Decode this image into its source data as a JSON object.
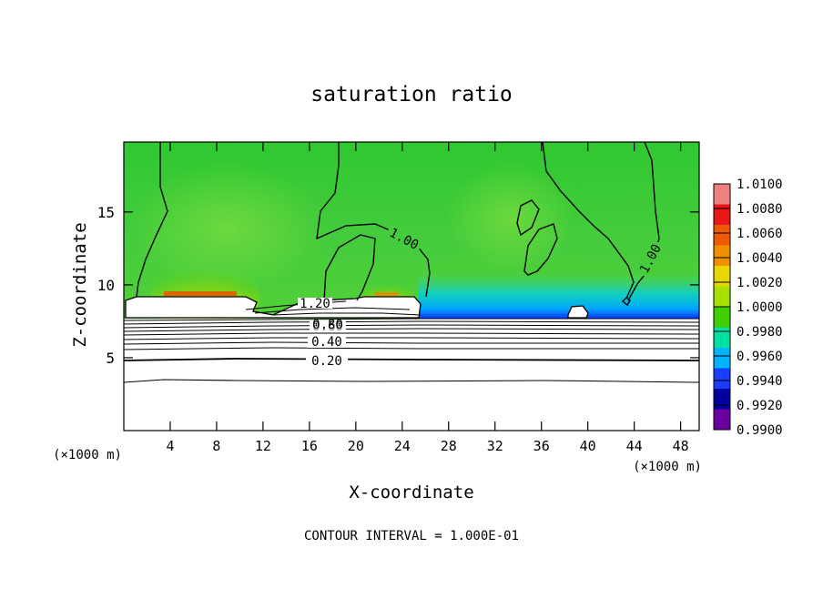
{
  "chart_data": {
    "type": "heatmap",
    "title": "saturation ratio",
    "xlabel": "X-coordinate",
    "ylabel": "Z-coordinate",
    "x_units_left": "(×1000 m)",
    "x_units_right": "(×1000 m)",
    "footer": "CONTOUR INTERVAL = 1.000E-01",
    "xlim": [
      0,
      49.6
    ],
    "ylim": [
      0,
      19.8
    ],
    "x_ticks": [
      4,
      8,
      12,
      16,
      20,
      24,
      28,
      32,
      36,
      40,
      44,
      48
    ],
    "y_ticks": [
      5,
      10,
      15
    ],
    "x_tick_labels": [
      "4",
      "8",
      "12",
      "16",
      "20",
      "24",
      "28",
      "32",
      "36",
      "40",
      "44",
      "48"
    ],
    "y_tick_labels": [
      "5",
      "10",
      "15"
    ],
    "colorbar": {
      "labels": [
        "1.0100",
        "1.0080",
        "1.0060",
        "1.0040",
        "1.0020",
        "1.0000",
        "0.9980",
        "0.9960",
        "0.9940",
        "0.9920",
        "0.9900"
      ],
      "colors": [
        "#f08080",
        "#e81818",
        "#f05a00",
        "#f09000",
        "#e8d800",
        "#a8e000",
        "#40d000",
        "#00e0a0",
        "#00b4ff",
        "#1a3cff",
        "#0000a0",
        "#6a00a0"
      ]
    },
    "contour_labels": [
      "1.00",
      "1.00",
      "1.20",
      "0.60",
      "0.80",
      "0.40",
      "0.20"
    ],
    "layers": {
      "cloud_top_z": 9.0,
      "cloud_bottom_z": 7.8,
      "blue_band_x": [
        25.5,
        49.6
      ]
    }
  }
}
